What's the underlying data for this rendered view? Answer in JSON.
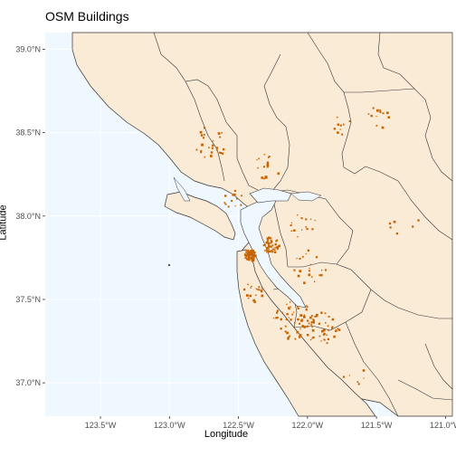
{
  "title": "OSM Buildings",
  "axes": {
    "xlabel": "Longitude",
    "ylabel": "Latitude",
    "x_ticks": [
      "123.5°W",
      "123.0°W",
      "122.5°W",
      "122.0°W",
      "121.5°W",
      "121.0°W"
    ],
    "y_ticks": [
      "39.0°N",
      "38.5°N",
      "38.0°N",
      "37.5°N",
      "37.0°N"
    ]
  },
  "colors": {
    "water": "#f0f8ff",
    "land": "#faebd7",
    "border": "#333333",
    "buildings": "#c86400",
    "grid": "#ffffff"
  },
  "chart_data": {
    "type": "map",
    "title": "OSM Buildings",
    "xlabel": "Longitude",
    "ylabel": "Latitude",
    "xlim": [
      -123.9,
      -120.95
    ],
    "ylim": [
      36.8,
      39.1
    ],
    "x_tick_values": [
      -123.5,
      -123.0,
      -122.5,
      -122.0,
      -121.5,
      -121.0
    ],
    "y_tick_values": [
      39.0,
      38.5,
      38.0,
      37.5,
      37.0
    ],
    "x_tick_labels": [
      "123.5°W",
      "123.0°W",
      "122.5°W",
      "122.0°W",
      "121.5°W",
      "121.0°W"
    ],
    "y_tick_labels": [
      "39.0°N",
      "38.5°N",
      "38.0°N",
      "37.5°N",
      "37.0°N"
    ],
    "building_clusters": [
      {
        "lon": -122.42,
        "lat": 37.77,
        "n": 60,
        "spread": 0.035
      },
      {
        "lon": -122.27,
        "lat": 37.83,
        "n": 45,
        "spread": 0.05
      },
      {
        "lon": -122.1,
        "lat": 37.38,
        "n": 55,
        "spread": 0.12
      },
      {
        "lon": -121.9,
        "lat": 37.33,
        "n": 40,
        "spread": 0.1
      },
      {
        "lon": -122.72,
        "lat": 38.44,
        "n": 25,
        "spread": 0.1
      },
      {
        "lon": -122.3,
        "lat": 38.3,
        "n": 15,
        "spread": 0.08
      },
      {
        "lon": -122.04,
        "lat": 37.95,
        "n": 15,
        "spread": 0.08
      },
      {
        "lon": -121.75,
        "lat": 38.55,
        "n": 10,
        "spread": 0.06
      },
      {
        "lon": -121.5,
        "lat": 38.58,
        "n": 12,
        "spread": 0.08
      },
      {
        "lon": -122.4,
        "lat": 37.55,
        "n": 20,
        "spread": 0.06
      },
      {
        "lon": -122.0,
        "lat": 37.7,
        "n": 20,
        "spread": 0.1
      },
      {
        "lon": -121.3,
        "lat": 37.95,
        "n": 6,
        "spread": 0.1
      },
      {
        "lon": -122.55,
        "lat": 38.1,
        "n": 12,
        "spread": 0.06
      },
      {
        "lon": -121.65,
        "lat": 37.05,
        "n": 6,
        "spread": 0.08
      }
    ]
  }
}
